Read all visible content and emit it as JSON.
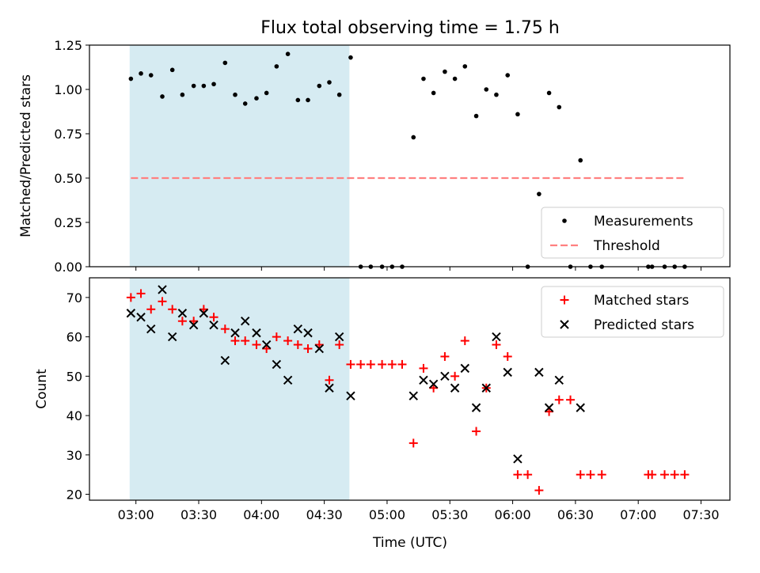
{
  "title": "Flux total observing time = 1.75 h",
  "x_axis": {
    "label": "Time (UTC)",
    "ticks": [
      "03:00",
      "03:30",
      "04:00",
      "04:30",
      "05:00",
      "05:30",
      "06:00",
      "06:30",
      "07:00",
      "07:30"
    ],
    "tick_values_hours": [
      3.0,
      3.5,
      4.0,
      4.5,
      5.0,
      5.5,
      6.0,
      6.5,
      7.0,
      7.5
    ],
    "range_hours": [
      2.63,
      7.73
    ]
  },
  "shaded_region": {
    "x_hours": [
      2.95,
      4.7
    ],
    "color": "#add8e6"
  },
  "chart_data": [
    {
      "type": "scatter",
      "ylabel": "Matched/Predicted stars",
      "ylim": [
        0,
        1.25
      ],
      "y_ticks": [
        "0.00",
        "0.25",
        "0.50",
        "0.75",
        "1.00",
        "1.25"
      ],
      "y_tick_values": [
        0,
        0.25,
        0.5,
        0.75,
        1.0,
        1.25
      ],
      "legend_position": "lower-right",
      "series": [
        {
          "name": "Measurements",
          "marker": "dot",
          "color": "#000000",
          "points": [
            [
              2.96,
              1.06
            ],
            [
              3.04,
              1.09
            ],
            [
              3.12,
              1.08
            ],
            [
              3.21,
              0.96
            ],
            [
              3.29,
              1.11
            ],
            [
              3.37,
              0.97
            ],
            [
              3.46,
              1.02
            ],
            [
              3.54,
              1.02
            ],
            [
              3.62,
              1.03
            ],
            [
              3.71,
              1.15
            ],
            [
              3.79,
              0.97
            ],
            [
              3.87,
              0.92
            ],
            [
              3.96,
              0.95
            ],
            [
              4.04,
              0.98
            ],
            [
              4.12,
              1.13
            ],
            [
              4.21,
              1.2
            ],
            [
              4.29,
              0.94
            ],
            [
              4.37,
              0.94
            ],
            [
              4.46,
              1.02
            ],
            [
              4.54,
              1.04
            ],
            [
              4.62,
              0.97
            ],
            [
              4.71,
              1.18
            ],
            [
              4.79,
              0.0
            ],
            [
              4.87,
              0.0
            ],
            [
              4.96,
              0.0
            ],
            [
              5.04,
              0.0
            ],
            [
              5.12,
              0.0
            ],
            [
              5.21,
              0.73
            ],
            [
              5.29,
              1.06
            ],
            [
              5.37,
              0.98
            ],
            [
              5.46,
              1.1
            ],
            [
              5.54,
              1.06
            ],
            [
              5.62,
              1.13
            ],
            [
              5.71,
              0.85
            ],
            [
              5.79,
              1.0
            ],
            [
              5.87,
              0.97
            ],
            [
              5.96,
              1.08
            ],
            [
              6.04,
              0.86
            ],
            [
              6.12,
              0.0
            ],
            [
              6.21,
              0.41
            ],
            [
              6.29,
              0.98
            ],
            [
              6.37,
              0.9
            ],
            [
              6.46,
              0.0
            ],
            [
              6.54,
              0.6
            ],
            [
              6.62,
              0.0
            ],
            [
              6.71,
              0.0
            ],
            [
              7.08,
              0.0
            ],
            [
              7.11,
              0.0
            ],
            [
              7.21,
              0.0
            ],
            [
              7.29,
              0.0
            ],
            [
              7.37,
              0.0
            ]
          ]
        },
        {
          "name": "Threshold",
          "marker": "dashed-line",
          "color": "#ff8080",
          "points": [
            [
              2.96,
              0.5
            ],
            [
              7.37,
              0.5
            ]
          ]
        }
      ]
    },
    {
      "type": "scatter",
      "ylabel": "Count",
      "ylim": [
        18.5,
        75
      ],
      "y_ticks": [
        "20",
        "30",
        "40",
        "50",
        "60",
        "70"
      ],
      "y_tick_values": [
        20,
        30,
        40,
        50,
        60,
        70
      ],
      "legend_position": "top-right",
      "series": [
        {
          "name": "Matched stars",
          "marker": "plus",
          "color": "#ff0000",
          "points": [
            [
              2.96,
              70
            ],
            [
              3.04,
              71
            ],
            [
              3.12,
              67
            ],
            [
              3.21,
              69
            ],
            [
              3.29,
              67
            ],
            [
              3.37,
              64
            ],
            [
              3.46,
              64
            ],
            [
              3.54,
              67
            ],
            [
              3.62,
              65
            ],
            [
              3.71,
              62
            ],
            [
              3.79,
              59
            ],
            [
              3.87,
              59
            ],
            [
              3.96,
              58
            ],
            [
              4.04,
              57
            ],
            [
              4.12,
              60
            ],
            [
              4.21,
              59
            ],
            [
              4.29,
              58
            ],
            [
              4.37,
              57
            ],
            [
              4.46,
              58
            ],
            [
              4.54,
              49
            ],
            [
              4.62,
              58
            ],
            [
              4.71,
              53
            ],
            [
              4.79,
              53
            ],
            [
              4.87,
              53
            ],
            [
              4.96,
              53
            ],
            [
              5.04,
              53
            ],
            [
              5.12,
              53
            ],
            [
              5.21,
              33
            ],
            [
              5.29,
              52
            ],
            [
              5.37,
              47
            ],
            [
              5.46,
              55
            ],
            [
              5.54,
              50
            ],
            [
              5.62,
              59
            ],
            [
              5.71,
              36
            ],
            [
              5.79,
              47
            ],
            [
              5.87,
              58
            ],
            [
              5.96,
              55
            ],
            [
              6.04,
              25
            ],
            [
              6.12,
              25
            ],
            [
              6.21,
              21
            ],
            [
              6.29,
              41
            ],
            [
              6.37,
              44
            ],
            [
              6.46,
              44
            ],
            [
              6.54,
              25
            ],
            [
              6.62,
              25
            ],
            [
              6.71,
              25
            ],
            [
              7.08,
              25
            ],
            [
              7.11,
              25
            ],
            [
              7.21,
              25
            ],
            [
              7.29,
              25
            ],
            [
              7.37,
              25
            ]
          ]
        },
        {
          "name": "Predicted stars",
          "marker": "x",
          "color": "#000000",
          "points": [
            [
              2.96,
              66
            ],
            [
              3.04,
              65
            ],
            [
              3.12,
              62
            ],
            [
              3.21,
              72
            ],
            [
              3.29,
              60
            ],
            [
              3.37,
              66
            ],
            [
              3.46,
              63
            ],
            [
              3.54,
              66
            ],
            [
              3.62,
              63
            ],
            [
              3.71,
              54
            ],
            [
              3.79,
              61
            ],
            [
              3.87,
              64
            ],
            [
              3.96,
              61
            ],
            [
              4.04,
              58
            ],
            [
              4.12,
              53
            ],
            [
              4.21,
              49
            ],
            [
              4.29,
              62
            ],
            [
              4.37,
              61
            ],
            [
              4.46,
              57
            ],
            [
              4.54,
              47
            ],
            [
              4.62,
              60
            ],
            [
              4.71,
              45
            ],
            [
              5.21,
              45
            ],
            [
              5.29,
              49
            ],
            [
              5.37,
              48
            ],
            [
              5.46,
              50
            ],
            [
              5.54,
              47
            ],
            [
              5.62,
              52
            ],
            [
              5.71,
              42
            ],
            [
              5.79,
              47
            ],
            [
              5.87,
              60
            ],
            [
              5.96,
              51
            ],
            [
              6.04,
              29
            ],
            [
              6.21,
              51
            ],
            [
              6.29,
              42
            ],
            [
              6.37,
              49
            ],
            [
              6.54,
              42
            ]
          ]
        }
      ]
    }
  ]
}
